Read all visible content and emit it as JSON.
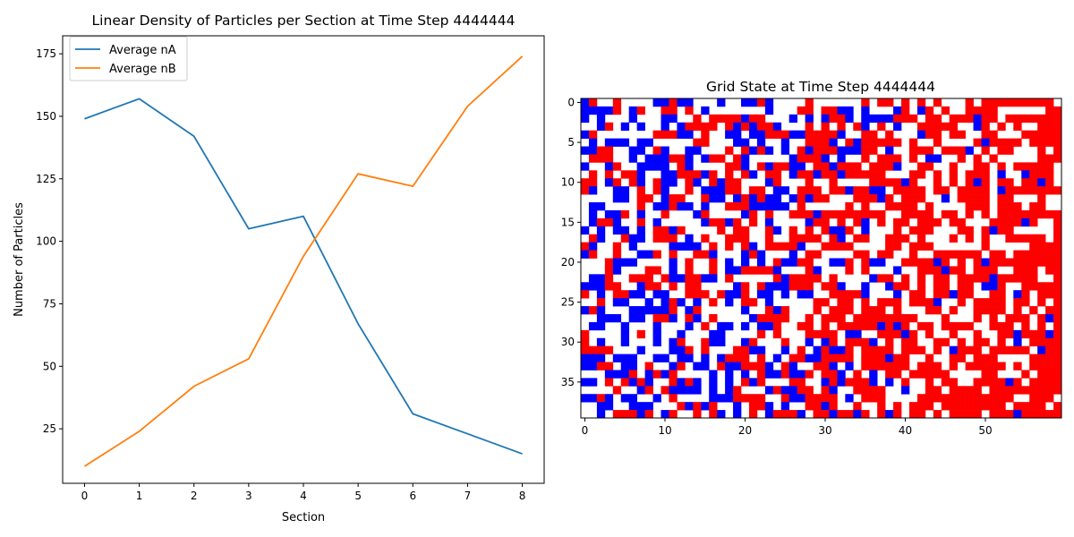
{
  "chart_data": [
    {
      "type": "line",
      "title": "Linear Density of Particles per Section at Time Step 4444444",
      "xlabel": "Section",
      "ylabel": "Number of Particles",
      "x": [
        0,
        1,
        2,
        3,
        4,
        5,
        6,
        7,
        8
      ],
      "xlim": [
        -0.4,
        8.4
      ],
      "ylim": [
        3.2,
        182.2
      ],
      "xticks": [
        0,
        1,
        2,
        3,
        4,
        5,
        6,
        7,
        8
      ],
      "yticks": [
        25,
        50,
        75,
        100,
        125,
        150,
        175
      ],
      "grid": false,
      "legend": "top-left",
      "series": [
        {
          "name": "Average nA",
          "color": "#1f77b4",
          "values": [
            149,
            157,
            142,
            105,
            110,
            67,
            31,
            23,
            15
          ]
        },
        {
          "name": "Average nB",
          "color": "#ff7f0e",
          "values": [
            10,
            24,
            42,
            53,
            94,
            127,
            122,
            154,
            174
          ]
        }
      ]
    },
    {
      "type": "heatmap",
      "title": "Grid State at Time Step 4444444",
      "rows": 40,
      "cols": 60,
      "xticks": [
        0,
        10,
        20,
        30,
        40,
        50
      ],
      "yticks": [
        0,
        5,
        10,
        15,
        20,
        25,
        30,
        35
      ],
      "colors": {
        "A": "#0000ff",
        "B": "#ff0000",
        "empty": "#ffffff"
      },
      "species_share_by_section": {
        "sections": [
          0,
          1,
          2,
          3,
          4,
          5,
          6,
          7,
          8
        ],
        "A": [
          0.44,
          0.47,
          0.43,
          0.31,
          0.33,
          0.2,
          0.09,
          0.07,
          0.04
        ],
        "B": [
          0.03,
          0.07,
          0.13,
          0.16,
          0.28,
          0.38,
          0.37,
          0.46,
          0.52
        ]
      }
    }
  ]
}
